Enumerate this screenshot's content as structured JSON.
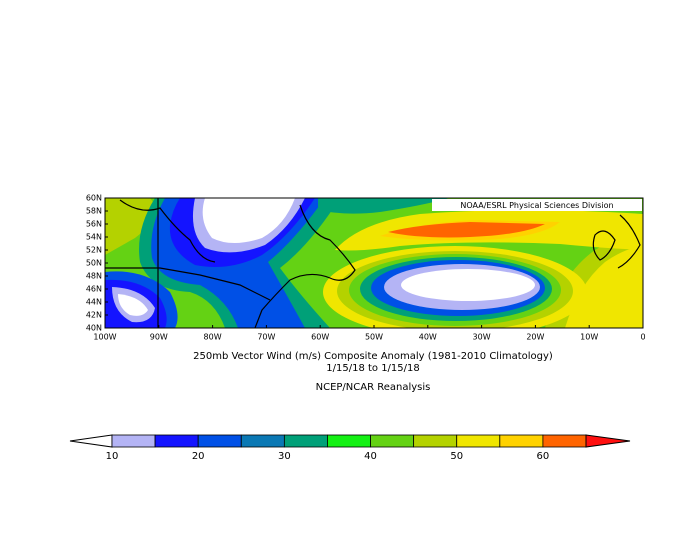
{
  "map": {
    "credit": "NOAA/ESRL Physical Sciences Division",
    "lat_labels": [
      "60N",
      "58N",
      "56N",
      "54N",
      "52N",
      "50N",
      "48N",
      "46N",
      "44N",
      "42N",
      "40N"
    ],
    "lon_labels": [
      "100W",
      "90W",
      "80W",
      "70W",
      "60W",
      "50W",
      "40W",
      "30W",
      "20W",
      "10W",
      "0"
    ],
    "title": "250mb Vector Wind (m/s) Composite Anomaly (1981-2010 Climatology)",
    "date_range": "1/15/18  to 1/15/18",
    "source": "NCEP/NCAR Reanalysis"
  },
  "colorbar": {
    "levels": [
      10,
      15,
      20,
      25,
      30,
      35,
      40,
      45,
      50,
      55,
      60,
      65
    ],
    "colors": [
      "#b4b4f5",
      "#1414ff",
      "#0050e6",
      "#0a78b4",
      "#00a078",
      "#14f014",
      "#64d214",
      "#b4d200",
      "#f0e600",
      "#ffd200",
      "#ff6400"
    ],
    "under_color": "#ffffff",
    "over_color": "#ff1010",
    "ticks": [
      10,
      20,
      30,
      40,
      50,
      60
    ]
  }
}
